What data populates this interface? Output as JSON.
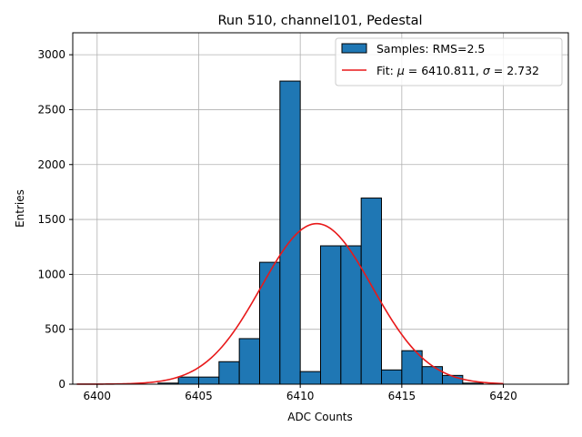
{
  "chart_data": {
    "type": "bar",
    "title": "Run 510, channel101, Pedestal",
    "xlabel": "ADC Counts",
    "ylabel": "Entries",
    "xlim": [
      6398.8,
      6423.2
    ],
    "ylim": [
      0,
      3200
    ],
    "xticks": [
      6400,
      6405,
      6410,
      6415,
      6420
    ],
    "yticks": [
      0,
      500,
      1000,
      1500,
      2000,
      2500,
      3000
    ],
    "grid": true,
    "legend_position": "top-right",
    "histogram": {
      "name": "Samples: RMS=2.5",
      "color": "#1f77b4",
      "edgecolor": "#000000",
      "bin_width": 1,
      "bins": [
        {
          "x": 6403,
          "count": 10
        },
        {
          "x": 6404,
          "count": 65
        },
        {
          "x": 6405,
          "count": 65
        },
        {
          "x": 6406,
          "count": 205
        },
        {
          "x": 6407,
          "count": 415
        },
        {
          "x": 6408,
          "count": 1110
        },
        {
          "x": 6409,
          "count": 2760
        },
        {
          "x": 6410,
          "count": 115
        },
        {
          "x": 6411,
          "count": 1260
        },
        {
          "x": 6412,
          "count": 1260
        },
        {
          "x": 6413,
          "count": 1695
        },
        {
          "x": 6414,
          "count": 130
        },
        {
          "x": 6415,
          "count": 305
        },
        {
          "x": 6416,
          "count": 160
        },
        {
          "x": 6417,
          "count": 80
        },
        {
          "x": 6418,
          "count": 10
        }
      ]
    },
    "fit": {
      "name_prefix": "Fit: ",
      "mu_symbol": "μ",
      "sigma_symbol": "σ",
      "mu_value": "6410.811",
      "sigma_value": "2.732",
      "mu": 6410.811,
      "sigma": 2.732,
      "amplitude": 1462,
      "x_range": [
        6399,
        6420
      ],
      "color": "#e8191a"
    }
  }
}
